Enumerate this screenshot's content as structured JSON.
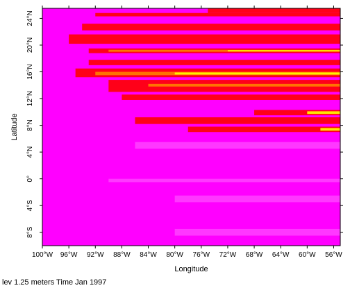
{
  "chart_data": {
    "type": "heatmap",
    "title": "",
    "xlabel": "Longitude",
    "ylabel": "Latitude",
    "xlim": [
      -100,
      -55
    ],
    "ylim": [
      -10,
      25.5
    ],
    "x_ticks": [
      {
        "value": -100,
        "label": "100°W"
      },
      {
        "value": -96,
        "label": "96°W"
      },
      {
        "value": -92,
        "label": "92°W"
      },
      {
        "value": -88,
        "label": "88°W"
      },
      {
        "value": -84,
        "label": "84°W"
      },
      {
        "value": -80,
        "label": "80°W"
      },
      {
        "value": -76,
        "label": "76°W"
      },
      {
        "value": -72,
        "label": "72°W"
      },
      {
        "value": -68,
        "label": "68°W"
      },
      {
        "value": -64,
        "label": "64°W"
      },
      {
        "value": -60,
        "label": "60°W"
      },
      {
        "value": -56,
        "label": "56°W"
      }
    ],
    "y_ticks": [
      {
        "value": 24,
        "label": "24°N"
      },
      {
        "value": 20,
        "label": "20°N"
      },
      {
        "value": 16,
        "label": "16°N"
      },
      {
        "value": 12,
        "label": "12°N"
      },
      {
        "value": 8,
        "label": "8°N"
      },
      {
        "value": 4,
        "label": "4°N"
      },
      {
        "value": 0,
        "label": "0°"
      },
      {
        "value": -4,
        "label": "4°S"
      },
      {
        "value": -8,
        "label": "8°S"
      }
    ],
    "colors": {
      "background_field": "#ff00ff",
      "red": "#ff0000",
      "orange": "#ff8000",
      "yellow": "#ffff00",
      "light": "#ff66ff"
    },
    "bands": [
      {
        "lat_min": 24.8,
        "lat_max": 25.5,
        "lon_start": -75,
        "level": "red"
      },
      {
        "lat_min": 24.3,
        "lat_max": 24.8,
        "lon_start": -92,
        "level": "red"
      },
      {
        "lat_min": 22.2,
        "lat_max": 23.2,
        "lon_start": -94,
        "level": "red"
      },
      {
        "lat_min": 20.2,
        "lat_max": 21.6,
        "lon_start": -96,
        "level": "red"
      },
      {
        "lat_min": 18.8,
        "lat_max": 19.5,
        "lon_start": -93,
        "level": "red"
      },
      {
        "lat_min": 19.0,
        "lat_max": 19.3,
        "lon_start": -90,
        "level": "orange"
      },
      {
        "lat_min": 19.05,
        "lat_max": 19.25,
        "lon_start": -72,
        "level": "yellow"
      },
      {
        "lat_min": 17.0,
        "lat_max": 17.8,
        "lon_start": -93,
        "level": "red"
      },
      {
        "lat_min": 15.2,
        "lat_max": 16.5,
        "lon_start": -95,
        "level": "red"
      },
      {
        "lat_min": 15.5,
        "lat_max": 16.0,
        "lon_start": -92,
        "level": "orange"
      },
      {
        "lat_min": 15.6,
        "lat_max": 15.9,
        "lon_start": -80,
        "level": "yellow"
      },
      {
        "lat_min": 13.0,
        "lat_max": 14.8,
        "lon_start": -90,
        "level": "red"
      },
      {
        "lat_min": 13.8,
        "lat_max": 14.2,
        "lon_start": -84,
        "level": "orange"
      },
      {
        "lat_min": 11.8,
        "lat_max": 12.6,
        "lon_start": -88,
        "level": "red"
      },
      {
        "lat_min": 9.5,
        "lat_max": 10.3,
        "lon_start": -68,
        "level": "red"
      },
      {
        "lat_min": 9.7,
        "lat_max": 10.1,
        "lon_start": -60,
        "level": "yellow"
      },
      {
        "lat_min": 8.2,
        "lat_max": 9.2,
        "lon_start": -86,
        "level": "red"
      },
      {
        "lat_min": 7.0,
        "lat_max": 7.8,
        "lon_start": -78,
        "level": "red"
      },
      {
        "lat_min": 7.2,
        "lat_max": 7.6,
        "lon_start": -58,
        "level": "yellow"
      },
      {
        "lat_min": 4.5,
        "lat_max": 5.5,
        "lon_start": -86,
        "level": "light"
      },
      {
        "lat_min": -0.5,
        "lat_max": 0.0,
        "lon_start": -90,
        "level": "light"
      },
      {
        "lat_min": -3.5,
        "lat_max": -2.5,
        "lon_start": -80,
        "level": "light"
      },
      {
        "lat_min": -8.5,
        "lat_max": -7.5,
        "lon_start": -80,
        "level": "light"
      }
    ]
  },
  "caption": "lev 1.25 meters Time Jan 1997"
}
